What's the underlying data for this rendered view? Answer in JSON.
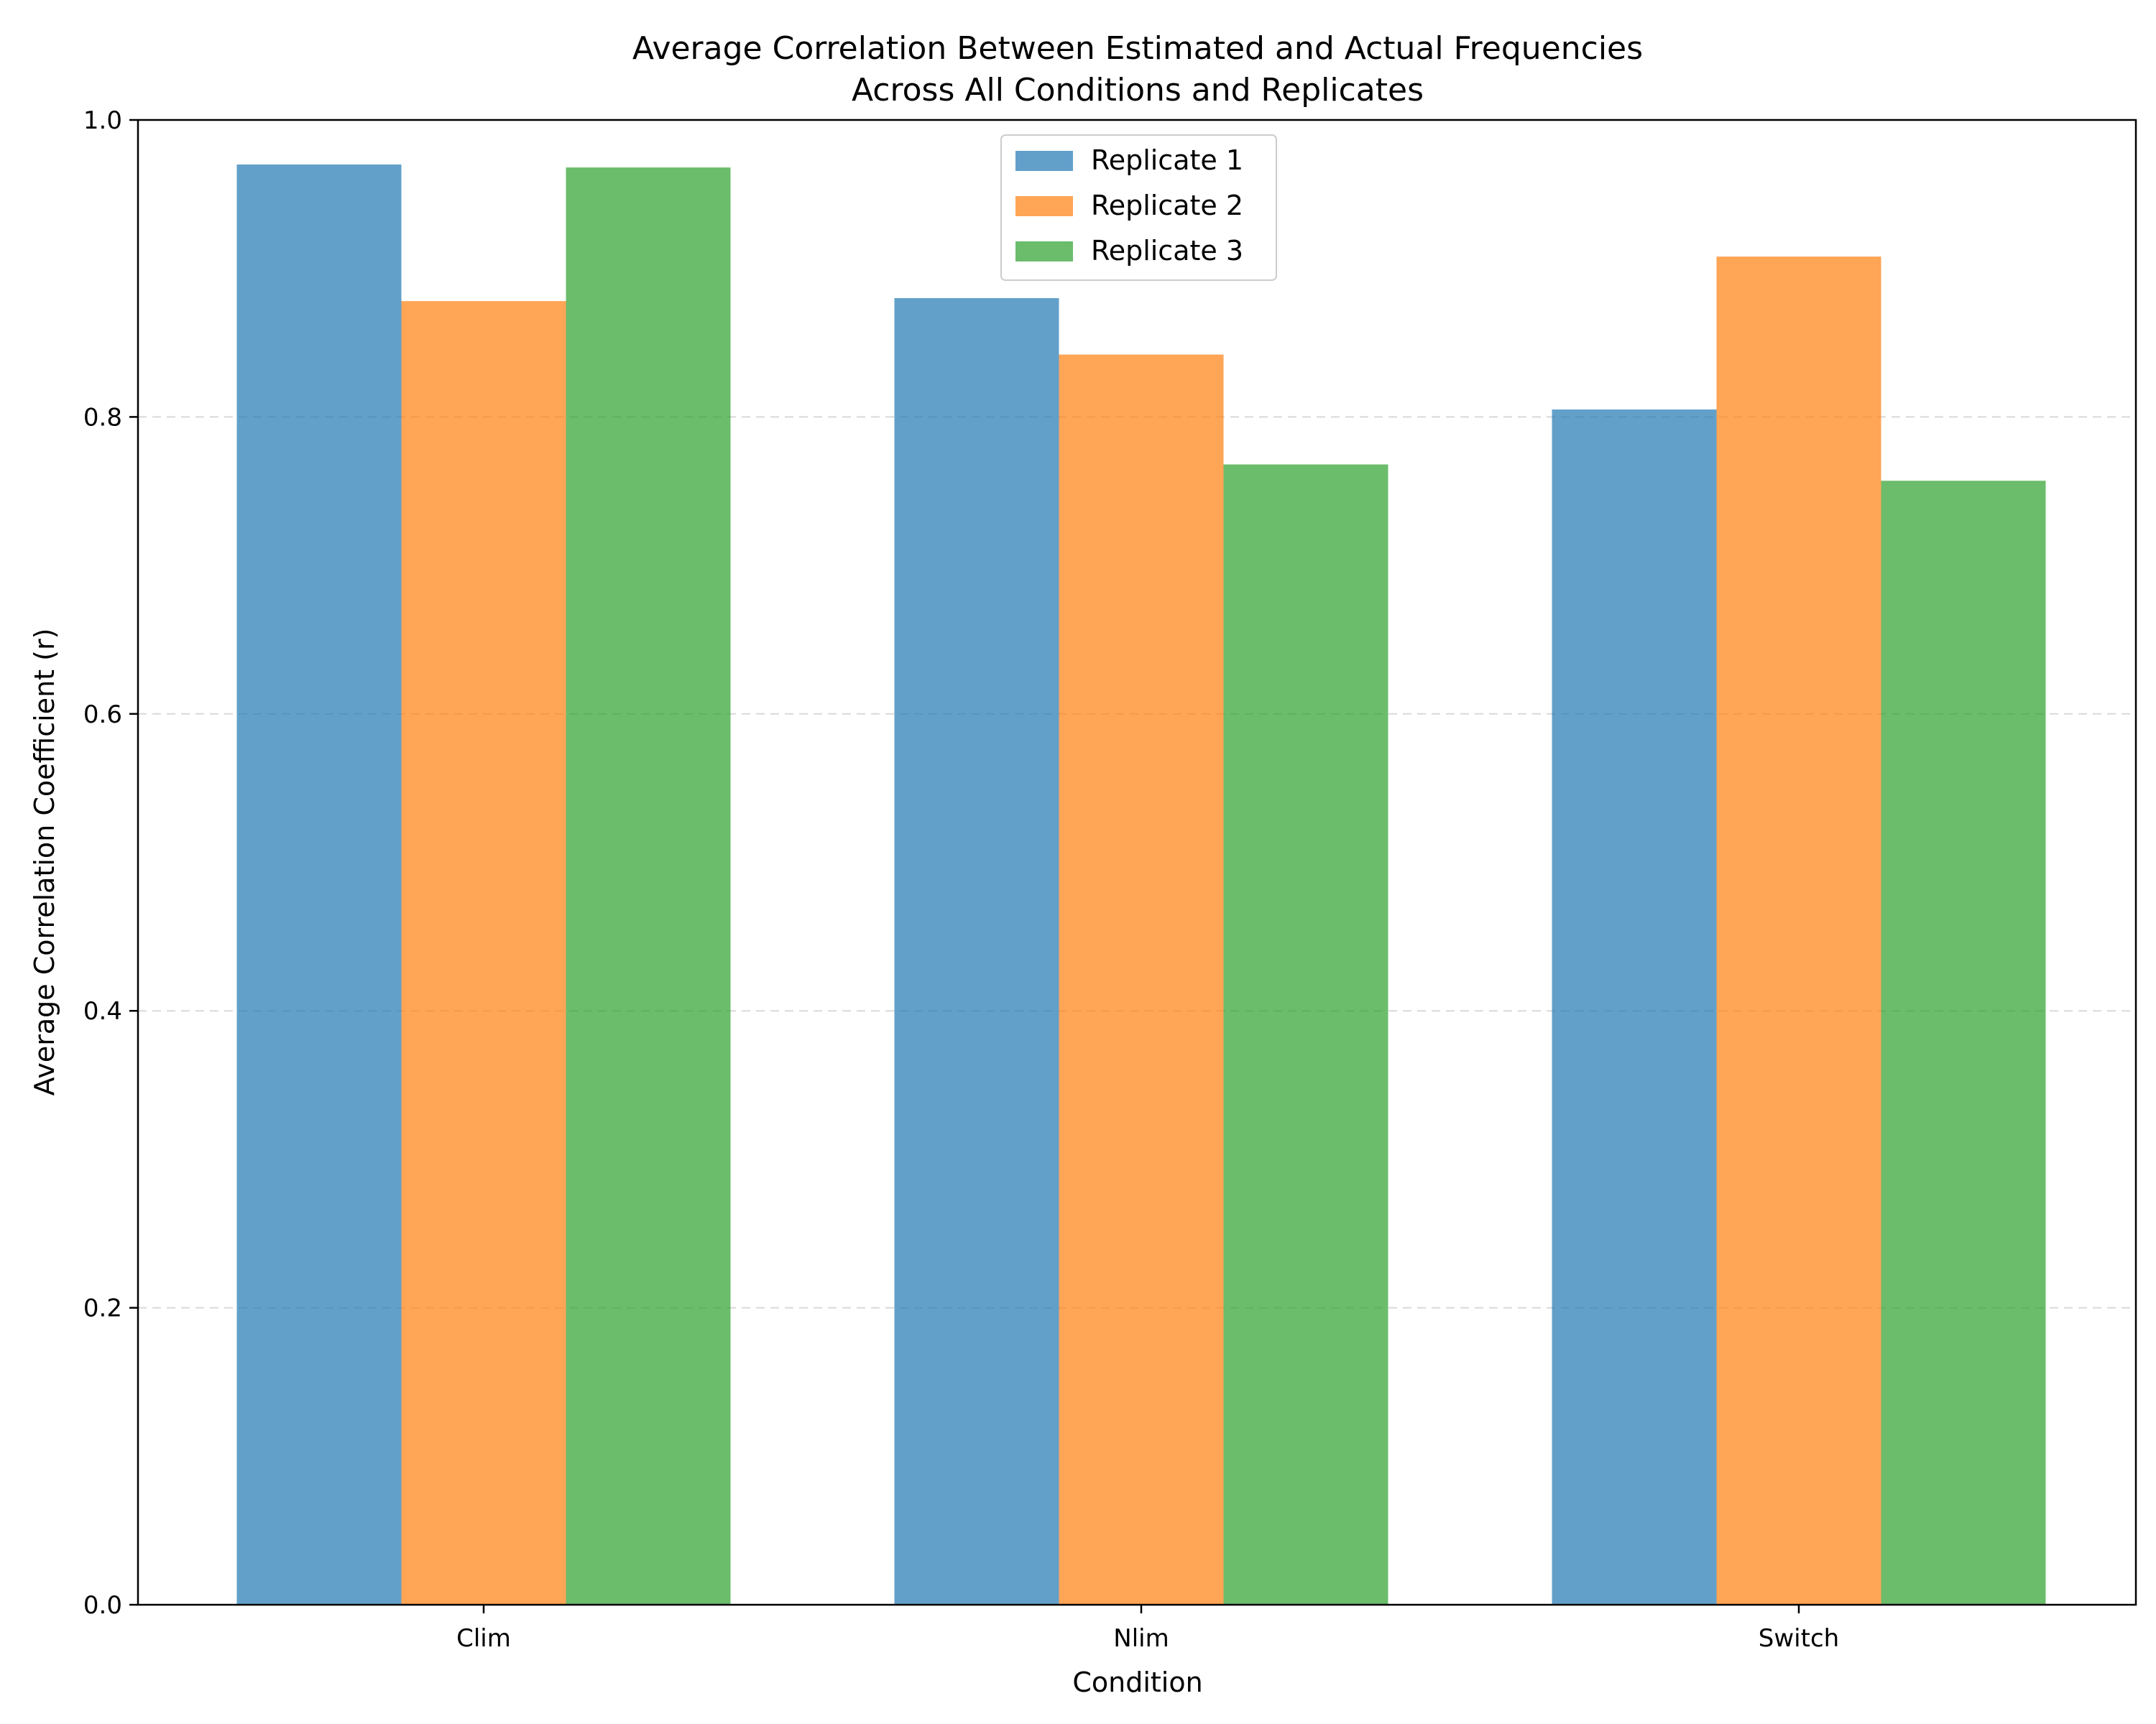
{
  "chart_data": {
    "type": "bar",
    "title": "Average Correlation Between Estimated and Actual Frequencies",
    "subtitle": "Across All Conditions and Replicates",
    "xlabel": "Condition",
    "ylabel": "Average Correlation Coefficient (r)",
    "categories": [
      "Clim",
      "Nlim",
      "Switch"
    ],
    "series": [
      {
        "name": "Replicate 1",
        "color": "#1f77b4",
        "values": [
          0.97,
          0.88,
          0.805
        ]
      },
      {
        "name": "Replicate 2",
        "color": "#ff7f0e",
        "values": [
          0.878,
          0.842,
          0.908
        ]
      },
      {
        "name": "Replicate 3",
        "color": "#2ca02c",
        "values": [
          0.968,
          0.768,
          0.757
        ]
      }
    ],
    "ylim": [
      0,
      1.0
    ],
    "yticks": [
      "0.0",
      "0.2",
      "0.4",
      "0.6",
      "0.8",
      "1.0"
    ],
    "grid": "y-dashed",
    "legend_position": "top-center"
  }
}
